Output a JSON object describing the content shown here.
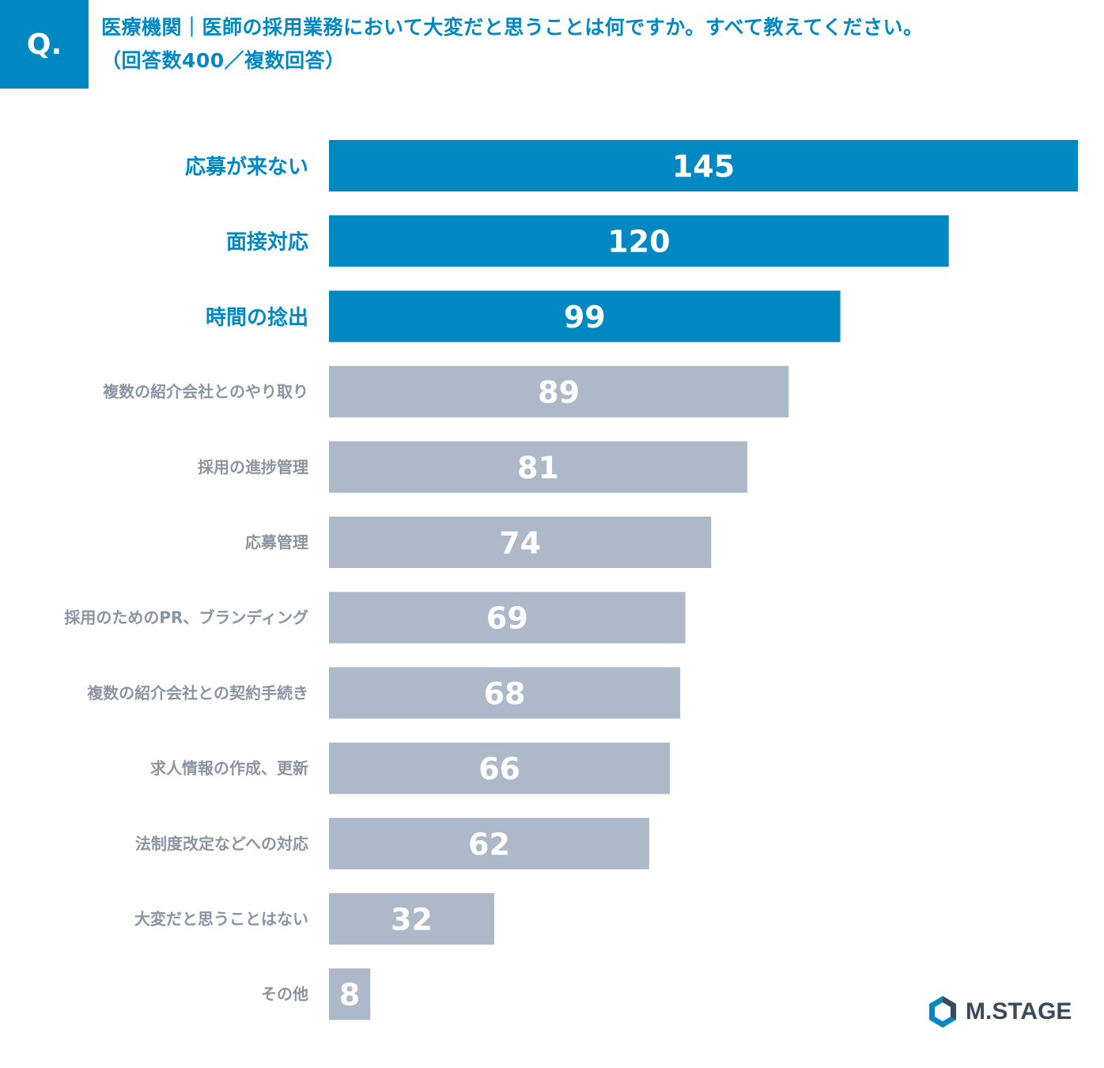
{
  "header": {
    "badge": "Q.",
    "question_line1": "医療機関｜医師の採用業務において大変だと思うことは何ですか。すべて教えてください。",
    "question_line2": "（回答数400／複数回答）"
  },
  "chart_data": {
    "type": "bar",
    "orientation": "horizontal",
    "categories": [
      "応募が来ない",
      "面接対応",
      "時間の捻出",
      "複数の紹介会社とのやり取り",
      "採用の進捗管理",
      "応募管理",
      "採用のためのPR、ブランディング",
      "複数の紹介会社との契約手続き",
      "求人情報の作成、更新",
      "法制度改定などへの対応",
      "大変だと思うことはない",
      "その他"
    ],
    "values": [
      145,
      120,
      99,
      89,
      81,
      74,
      69,
      68,
      66,
      62,
      32,
      8
    ],
    "highlight_top": 3,
    "title": "",
    "xlabel": "",
    "ylabel": "",
    "xlim": [
      0,
      145
    ]
  },
  "colors": {
    "accent": "#0088c2",
    "bar_default": "#adb8c9",
    "label_default": "#8a94a3",
    "value_text": "#ffffff"
  },
  "logo": {
    "text": "M.STAGE",
    "icon": "hexagon-logo-icon"
  }
}
